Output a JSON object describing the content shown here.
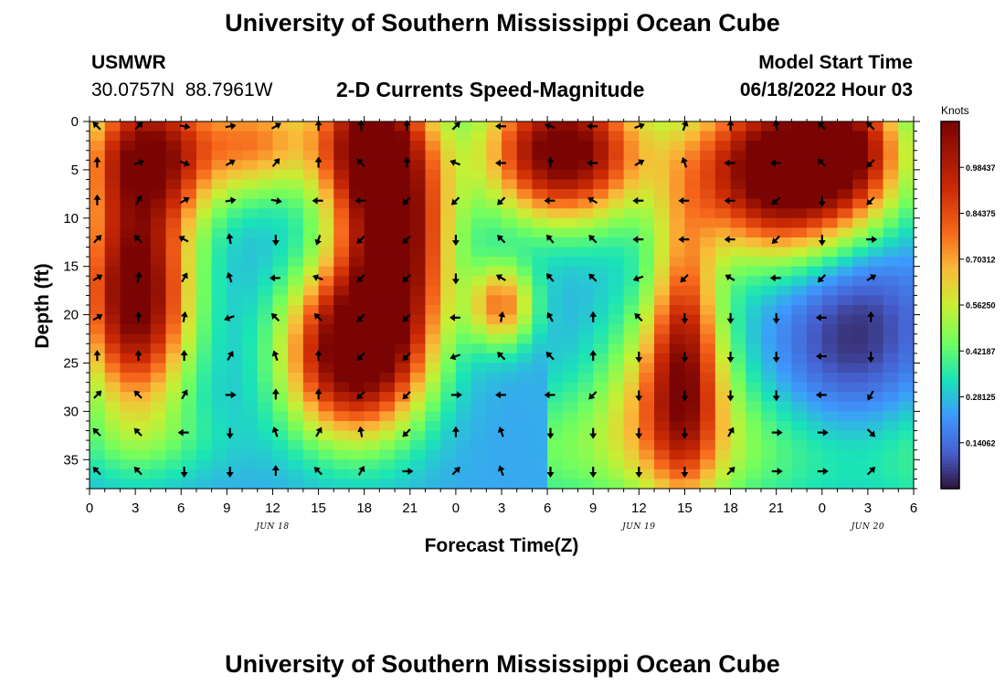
{
  "page": {
    "title": "University of Southern Mississippi Ocean Cube",
    "station_id": "USMWR",
    "station_coords": "30.0757N  88.7961W",
    "chart_subtitle": "2-D Currents Speed-Magnitude",
    "model_start_label": "Model Start Time",
    "model_start_value": "06/18/2022 Hour 03",
    "footer_title": "University of Southern Mississippi Ocean Cube"
  },
  "chart_data": {
    "type": "heatmap",
    "title": "2-D Currents Speed-Magnitude",
    "xlabel": "Forecast Time(Z)",
    "ylabel": "Depth (ft)",
    "xlim": [
      0,
      54
    ],
    "ylim": [
      0,
      38
    ],
    "x_ticks": [
      0,
      3,
      6,
      9,
      12,
      15,
      18,
      21,
      24,
      27,
      30,
      33,
      36,
      39,
      42,
      45,
      48,
      51,
      54
    ],
    "x_tick_labels": [
      "0",
      "3",
      "6",
      "9",
      "12",
      "15",
      "18",
      "21",
      "0",
      "3",
      "6",
      "9",
      "12",
      "15",
      "18",
      "21",
      "0",
      "3",
      "6"
    ],
    "y_ticks": [
      0,
      5,
      10,
      15,
      20,
      25,
      30,
      35
    ],
    "y_tick_labels": [
      "0",
      "5",
      "10",
      "15",
      "20",
      "25",
      "30",
      "35"
    ],
    "date_labels": [
      {
        "label": "JUN 18",
        "x": 12
      },
      {
        "label": "JUN 19",
        "x": 36
      },
      {
        "label": "JUN 20",
        "x": 51
      }
    ],
    "colorbar": {
      "label": "Knots",
      "range": [
        0,
        1.125
      ],
      "ticks": [
        0.14062,
        0.28125,
        0.42187,
        0.5625,
        0.70312,
        0.84375,
        0.98437
      ],
      "tick_labels": [
        "0.14062",
        "0.28125",
        "0.42187",
        "0.56250",
        "0.70312",
        "0.84375",
        "0.98437"
      ]
    },
    "speed_blobs": [
      {
        "x": 4,
        "y": 3,
        "sx": 3.0,
        "sy": 5,
        "a": 0.7
      },
      {
        "x": 3,
        "y": 18,
        "sx": 2.5,
        "sy": 8,
        "a": 0.85
      },
      {
        "x": 11,
        "y": 2,
        "sx": 2.5,
        "sy": 4,
        "a": 0.4
      },
      {
        "x": 18,
        "y": 2,
        "sx": 2.5,
        "sy": 5,
        "a": 0.6
      },
      {
        "x": 20,
        "y": 12,
        "sx": 2.5,
        "sy": 9,
        "a": 0.8
      },
      {
        "x": 17,
        "y": 24,
        "sx": 3.0,
        "sy": 6,
        "a": 0.8
      },
      {
        "x": 4,
        "y": 33,
        "sx": 4,
        "sy": 3,
        "a": 0.1
      },
      {
        "x": 27,
        "y": 19,
        "sx": 1.5,
        "sy": 3,
        "a": 0.45
      },
      {
        "x": 31,
        "y": 3,
        "sx": 3.5,
        "sy": 5,
        "a": 0.85
      },
      {
        "x": 38,
        "y": 28,
        "sx": 3,
        "sy": 7,
        "a": 0.35
      },
      {
        "x": 39,
        "y": 23,
        "sx": 1.5,
        "sy": 10,
        "a": 0.45
      },
      {
        "x": 46,
        "y": 5,
        "sx": 4.5,
        "sy": 6,
        "a": 1.0
      },
      {
        "x": 50,
        "y": 2,
        "sx": 2,
        "sy": 4,
        "a": 0.3
      },
      {
        "x": 50,
        "y": 22,
        "sx": 3.5,
        "sy": 10,
        "a": -0.2
      }
    ],
    "speed_base": 0.22,
    "speed_ridge": {
      "a": 0.28,
      "depth_center": 34,
      "depth_sigma": 5,
      "x_range": [
        30,
        54
      ]
    },
    "vectors": {
      "x": [
        0.5,
        3.2,
        6.2,
        9.2,
        12.2,
        15.0,
        17.8,
        20.8,
        24.0,
        27.0,
        30.2,
        33.0,
        36.0,
        39.0,
        42.0,
        45.0,
        48.0,
        51.2
      ],
      "y": [
        0.5,
        4.3,
        8.2,
        12.2,
        16.2,
        20.3,
        24.3,
        28.3,
        32.2,
        36.2
      ],
      "angle_deg": [
        [
          135,
          45,
          350,
          10,
          30,
          90,
          90,
          90,
          45,
          180,
          160,
          180,
          20,
          70,
          90,
          100,
          135,
          135
        ],
        [
          90,
          20,
          340,
          30,
          50,
          90,
          135,
          90,
          160,
          180,
          90,
          180,
          30,
          110,
          180,
          180,
          135,
          225
        ],
        [
          90,
          60,
          30,
          10,
          350,
          180,
          180,
          225,
          225,
          225,
          180,
          150,
          180,
          180,
          180,
          220,
          270,
          225
        ],
        [
          45,
          135,
          150,
          100,
          270,
          250,
          225,
          225,
          270,
          135,
          130,
          135,
          180,
          180,
          180,
          225,
          270,
          0
        ],
        [
          30,
          80,
          60,
          110,
          180,
          160,
          225,
          225,
          270,
          150,
          130,
          135,
          200,
          225,
          150,
          180,
          225,
          30
        ],
        [
          30,
          90,
          80,
          200,
          135,
          135,
          225,
          225,
          180,
          80,
          120,
          90,
          135,
          270,
          270,
          270,
          180,
          90
        ],
        [
          90,
          90,
          90,
          60,
          110,
          90,
          225,
          225,
          200,
          135,
          135,
          90,
          270,
          270,
          270,
          270,
          180,
          270
        ],
        [
          45,
          135,
          60,
          0,
          90,
          90,
          225,
          225,
          0,
          180,
          180,
          225,
          270,
          270,
          270,
          270,
          180,
          240
        ],
        [
          135,
          135,
          180,
          270,
          110,
          60,
          100,
          225,
          90,
          110,
          270,
          270,
          270,
          270,
          60,
          0,
          0,
          315
        ],
        [
          135,
          135,
          270,
          270,
          90,
          135,
          60,
          0,
          45,
          110,
          270,
          270,
          270,
          270,
          45,
          0,
          0,
          45
        ]
      ]
    }
  }
}
